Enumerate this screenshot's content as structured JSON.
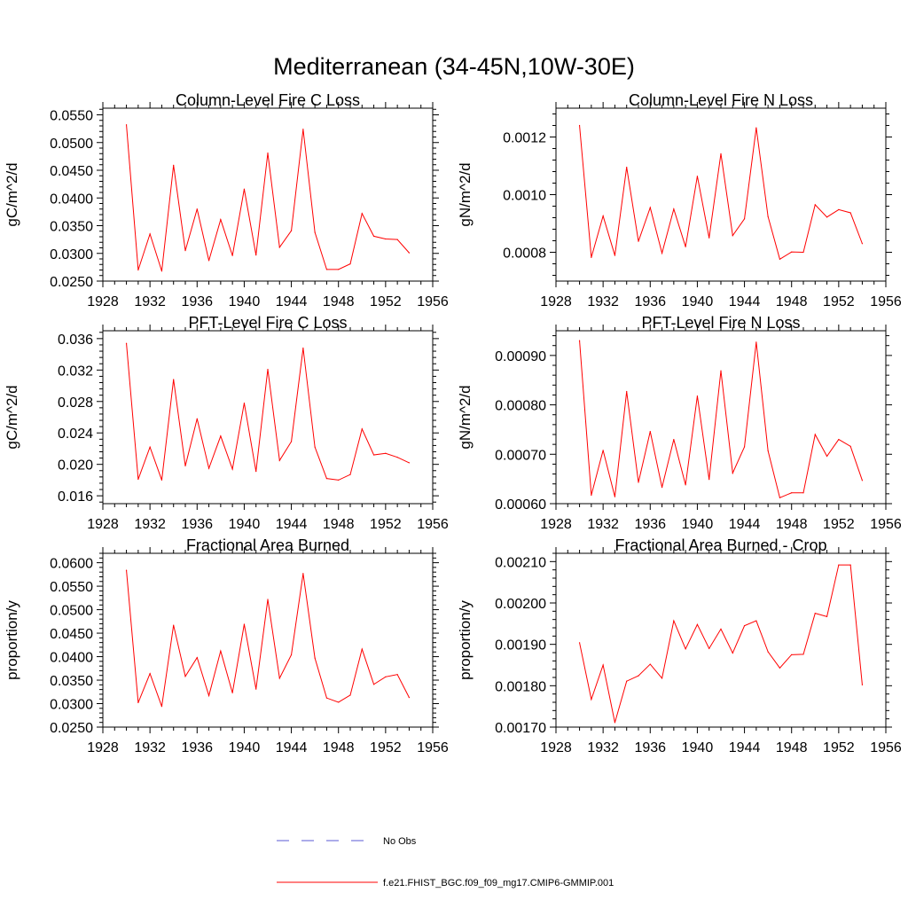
{
  "figure": {
    "title": "Mediterranean (34-45N,10W-30E)",
    "background": "#ffffff"
  },
  "legend": {
    "items": [
      {
        "label": "No Obs",
        "color": "#5a5ad6",
        "dash": "dashed"
      },
      {
        "label": "f.e21.FHIST_BGC.f09_f09_mg17.CMIP6-GMMIP.001",
        "color": "#ff0000",
        "dash": "solid"
      }
    ]
  },
  "chart_data": [
    {
      "type": "line",
      "title": "Column-Level Fire C Loss",
      "ylabel": "gC/m^2/d",
      "xlim": [
        1928,
        1956
      ],
      "ylim": [
        0.025,
        0.0562
      ],
      "xticks": [
        1928,
        1932,
        1936,
        1940,
        1944,
        1948,
        1952,
        1956
      ],
      "yticks": [
        0.025,
        0.03,
        0.035,
        0.04,
        0.045,
        0.05,
        0.055
      ],
      "ytick_labels": [
        "0.0250",
        "0.0300",
        "0.0350",
        "0.0400",
        "0.0450",
        "0.0500",
        "0.0550"
      ],
      "series": [
        {
          "name": "f.e21.FHIST_BGC.f09_f09_mg17.CMIP6-GMMIP.001",
          "color": "#ff0000",
          "x": [
            1930,
            1931,
            1932,
            1933,
            1934,
            1935,
            1936,
            1937,
            1938,
            1939,
            1940,
            1941,
            1942,
            1943,
            1944,
            1945,
            1946,
            1947,
            1948,
            1949,
            1950,
            1951,
            1952,
            1953,
            1954
          ],
          "y": [
            0.0532,
            0.027,
            0.0335,
            0.0268,
            0.0459,
            0.0305,
            0.038,
            0.0287,
            0.0361,
            0.0296,
            0.0416,
            0.0297,
            0.0481,
            0.0311,
            0.0341,
            0.0524,
            0.0338,
            0.0271,
            0.0271,
            0.0281,
            0.0372,
            0.0331,
            0.0326,
            0.0325,
            0.0301
          ]
        }
      ]
    },
    {
      "type": "line",
      "title": "Column-Level Fire N Loss",
      "ylabel": "gN/m^2/d",
      "xlim": [
        1928,
        1956
      ],
      "ylim": [
        0.0007,
        0.0013
      ],
      "xticks": [
        1928,
        1932,
        1936,
        1940,
        1944,
        1948,
        1952,
        1956
      ],
      "yticks": [
        0.0008,
        0.001,
        0.0012
      ],
      "ytick_labels": [
        "0.0008",
        "0.0010",
        "0.0012"
      ],
      "series": [
        {
          "name": "f.e21.FHIST_BGC.f09_f09_mg17.CMIP6-GMMIP.001",
          "color": "#ff0000",
          "x": [
            1930,
            1931,
            1932,
            1933,
            1934,
            1935,
            1936,
            1937,
            1938,
            1939,
            1940,
            1941,
            1942,
            1943,
            1944,
            1945,
            1946,
            1947,
            1948,
            1949,
            1950,
            1951,
            1952,
            1953,
            1954
          ],
          "y": [
            0.00124,
            0.000782,
            0.000926,
            0.000789,
            0.001095,
            0.000838,
            0.000955,
            0.000797,
            0.00095,
            0.000819,
            0.001064,
            0.00085,
            0.001142,
            0.000858,
            0.000916,
            0.001232,
            0.000924,
            0.000776,
            0.000801,
            0.0008,
            0.000965,
            0.000922,
            0.000948,
            0.000937,
            0.00083
          ]
        }
      ]
    },
    {
      "type": "line",
      "title": "PFT-Level Fire C Loss",
      "ylabel": "gC/m^2/d",
      "xlim": [
        1928,
        1956
      ],
      "ylim": [
        0.015,
        0.037
      ],
      "xticks": [
        1928,
        1932,
        1936,
        1940,
        1944,
        1948,
        1952,
        1956
      ],
      "yticks": [
        0.016,
        0.02,
        0.024,
        0.028,
        0.032,
        0.036
      ],
      "ytick_labels": [
        "0.016",
        "0.020",
        "0.024",
        "0.028",
        "0.032",
        "0.036"
      ],
      "series": [
        {
          "name": "f.e21.FHIST_BGC.f09_f09_mg17.CMIP6-GMMIP.001",
          "color": "#ff0000",
          "x": [
            1930,
            1931,
            1932,
            1933,
            1934,
            1935,
            1936,
            1937,
            1938,
            1939,
            1940,
            1941,
            1942,
            1943,
            1944,
            1945,
            1946,
            1947,
            1948,
            1949,
            1950,
            1951,
            1952,
            1953,
            1954
          ],
          "y": [
            0.0354,
            0.0181,
            0.0222,
            0.018,
            0.0308,
            0.0198,
            0.0258,
            0.0195,
            0.0236,
            0.0194,
            0.0278,
            0.0191,
            0.0321,
            0.0205,
            0.0229,
            0.0348,
            0.0222,
            0.0182,
            0.018,
            0.0187,
            0.0245,
            0.0212,
            0.0214,
            0.0209,
            0.0202
          ]
        }
      ]
    },
    {
      "type": "line",
      "title": "PFT-Level Fire N Loss",
      "ylabel": "gN/m^2/d",
      "xlim": [
        1928,
        1956
      ],
      "ylim": [
        0.0006,
        0.00095
      ],
      "xticks": [
        1928,
        1932,
        1936,
        1940,
        1944,
        1948,
        1952,
        1956
      ],
      "yticks": [
        0.0006,
        0.0007,
        0.0008,
        0.0009
      ],
      "ytick_labels": [
        "0.00060",
        "0.00070",
        "0.00080",
        "0.00090"
      ],
      "series": [
        {
          "name": "f.e21.FHIST_BGC.f09_f09_mg17.CMIP6-GMMIP.001",
          "color": "#ff0000",
          "x": [
            1930,
            1931,
            1932,
            1933,
            1934,
            1935,
            1936,
            1937,
            1938,
            1939,
            1940,
            1941,
            1942,
            1943,
            1944,
            1945,
            1946,
            1947,
            1948,
            1949,
            1950,
            1951,
            1952,
            1953,
            1954
          ],
          "y": [
            0.00093,
            0.000617,
            0.000708,
            0.000614,
            0.000827,
            0.000643,
            0.000746,
            0.000633,
            0.00073,
            0.000638,
            0.000818,
            0.000649,
            0.000869,
            0.000662,
            0.000715,
            0.000927,
            0.000707,
            0.000612,
            0.000622,
            0.000622,
            0.00074,
            0.000696,
            0.00073,
            0.000716,
            0.000647
          ]
        }
      ]
    },
    {
      "type": "line",
      "title": "Fractional Area Burned",
      "ylabel": "proportion/y",
      "xlim": [
        1928,
        1956
      ],
      "ylim": [
        0.025,
        0.062
      ],
      "xticks": [
        1928,
        1932,
        1936,
        1940,
        1944,
        1948,
        1952,
        1956
      ],
      "yticks": [
        0.025,
        0.03,
        0.035,
        0.04,
        0.045,
        0.05,
        0.055,
        0.06
      ],
      "ytick_labels": [
        "0.0250",
        "0.0300",
        "0.0350",
        "0.0400",
        "0.0450",
        "0.0500",
        "0.0550",
        "0.0600"
      ],
      "series": [
        {
          "name": "f.e21.FHIST_BGC.f09_f09_mg17.CMIP6-GMMIP.001",
          "color": "#ff0000",
          "x": [
            1930,
            1931,
            1932,
            1933,
            1934,
            1935,
            1936,
            1937,
            1938,
            1939,
            1940,
            1941,
            1942,
            1943,
            1944,
            1945,
            1946,
            1947,
            1948,
            1949,
            1950,
            1951,
            1952,
            1953,
            1954
          ],
          "y": [
            0.0584,
            0.0302,
            0.0364,
            0.0294,
            0.0467,
            0.0358,
            0.0398,
            0.0317,
            0.0412,
            0.0323,
            0.0469,
            0.0331,
            0.0522,
            0.0354,
            0.0404,
            0.0577,
            0.0397,
            0.0312,
            0.0303,
            0.0318,
            0.0416,
            0.0341,
            0.0357,
            0.0362,
            0.0313
          ]
        }
      ]
    },
    {
      "type": "line",
      "title": "Fractional Area Burned - Crop",
      "ylabel": "proportion/y",
      "xlim": [
        1928,
        1956
      ],
      "ylim": [
        0.0017,
        0.00212
      ],
      "xticks": [
        1928,
        1932,
        1936,
        1940,
        1944,
        1948,
        1952,
        1956
      ],
      "yticks": [
        0.0017,
        0.0018,
        0.0019,
        0.002,
        0.0021
      ],
      "ytick_labels": [
        "0.00170",
        "0.00180",
        "0.00190",
        "0.00200",
        "0.00210"
      ],
      "series": [
        {
          "name": "f.e21.FHIST_BGC.f09_f09_mg17.CMIP6-GMMIP.001",
          "color": "#ff0000",
          "x": [
            1930,
            1931,
            1932,
            1933,
            1934,
            1935,
            1936,
            1937,
            1938,
            1939,
            1940,
            1941,
            1942,
            1943,
            1944,
            1945,
            1946,
            1947,
            1948,
            1949,
            1950,
            1951,
            1952,
            1953,
            1954
          ],
          "y": [
            0.001904,
            0.001767,
            0.00185,
            0.001711,
            0.001811,
            0.001824,
            0.001852,
            0.001818,
            0.001957,
            0.001889,
            0.001948,
            0.00189,
            0.001937,
            0.001879,
            0.001945,
            0.001957,
            0.001882,
            0.001843,
            0.001875,
            0.001876,
            0.001975,
            0.001967,
            0.002092,
            0.002092,
            0.001802
          ]
        }
      ]
    }
  ]
}
